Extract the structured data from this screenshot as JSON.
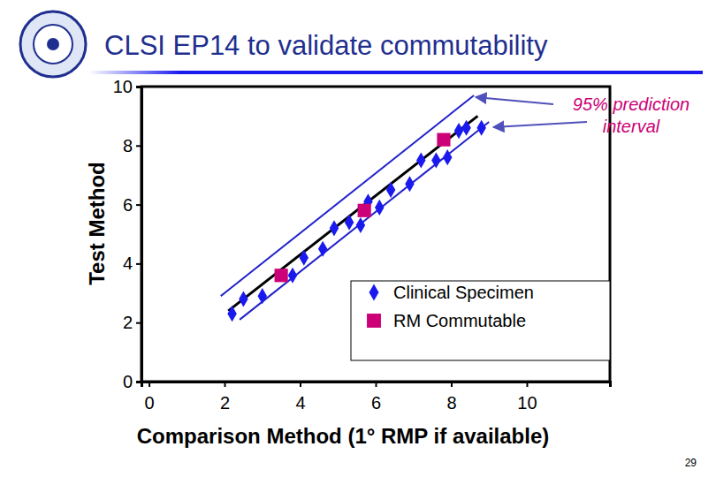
{
  "chart_data": {
    "type": "scatter",
    "title": "CLSI EP14 to validate commutability",
    "x_label": "Comparison Method (1° RMP if available)",
    "y_label": "Test Method",
    "xlim": [
      -0.2,
      12.2
    ],
    "ylim": [
      0,
      10
    ],
    "xticks": [
      0,
      2,
      4,
      6,
      8,
      10
    ],
    "yticks": [
      0,
      2,
      4,
      6,
      8,
      10
    ],
    "legend": "bottom-right",
    "annotations": [
      "95% prediction",
      "interval"
    ],
    "series": [
      {
        "name": "Clinical Specimen",
        "type": "scatter",
        "marker": "diamond",
        "color": "#1a1aee",
        "x": [
          2.2,
          2.5,
          3.0,
          3.8,
          4.1,
          4.6,
          4.9,
          5.3,
          5.6,
          5.8,
          6.1,
          6.4,
          6.9,
          7.2,
          7.6,
          7.9,
          8.2,
          8.4,
          8.8
        ],
        "values": [
          2.3,
          2.8,
          2.9,
          3.6,
          4.2,
          4.5,
          5.2,
          5.4,
          5.3,
          6.1,
          5.9,
          6.5,
          6.7,
          7.5,
          7.5,
          7.6,
          8.5,
          8.6,
          8.6
        ]
      },
      {
        "name": "RM Commutable",
        "type": "scatter",
        "marker": "square",
        "color": "#cc0077",
        "x": [
          3.5,
          5.7,
          7.8
        ],
        "values": [
          3.6,
          5.8,
          8.2
        ]
      },
      {
        "type": "line",
        "line_style": "solid",
        "color": "#000000",
        "x": [
          2.1,
          8.7
        ],
        "values": [
          2.4,
          9.0
        ]
      },
      {
        "type": "line",
        "line_style": "solid",
        "color": "#2222cc",
        "x": [
          1.9,
          8.6
        ],
        "values": [
          2.9,
          9.7
        ]
      },
      {
        "type": "line",
        "line_style": "solid",
        "color": "#2222cc",
        "x": [
          2.4,
          9.0
        ],
        "values": [
          2.1,
          8.8
        ]
      }
    ]
  },
  "slide": {
    "number": "29"
  }
}
